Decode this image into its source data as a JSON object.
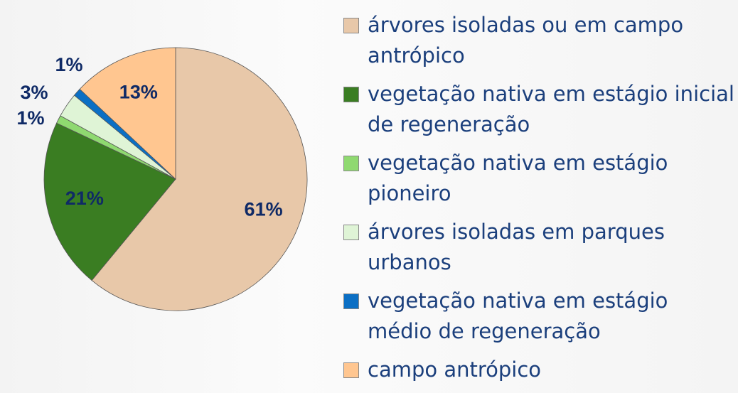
{
  "chart_data": {
    "type": "pie",
    "categories": [
      "árvores isoladas ou em campo antrópico",
      "vegetação nativa em estágio inicial de regeneração",
      "vegetação nativa em estágio pioneiro",
      "árvores isoladas em parques urbanos",
      "vegetação nativa em estágio médio de regeneração",
      "campo antrópico"
    ],
    "values": [
      61,
      21,
      1,
      3,
      1,
      13
    ],
    "value_labels": [
      "61%",
      "21%",
      "1%",
      "3%",
      "1%",
      "13%"
    ],
    "colors": [
      "#e8c8a9",
      "#3a7d22",
      "#8fd970",
      "#dff4d6",
      "#0b6fc4",
      "#ffc690"
    ],
    "legend": "right"
  }
}
